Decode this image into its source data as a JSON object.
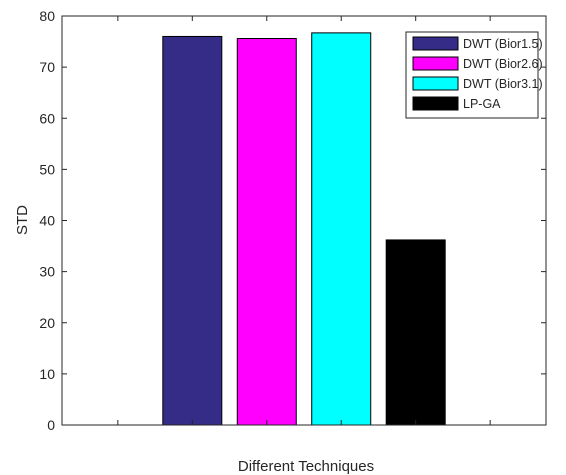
{
  "chart_data": {
    "type": "bar",
    "title": "",
    "xlabel": "Different Techniques",
    "ylabel": "STD",
    "ylim": [
      0,
      80
    ],
    "yticks": [
      0,
      10,
      20,
      30,
      40,
      50,
      60,
      70,
      80
    ],
    "x_positions": [
      1,
      2,
      3,
      4,
      5,
      6
    ],
    "xlim": [
      0.25,
      6.75
    ],
    "grid": false,
    "legend_position": "top-right",
    "series": [
      {
        "name": "DWT (Bior1.5)",
        "x": 2,
        "value": 76.0,
        "color": "#342c87"
      },
      {
        "name": "DWT (Bior2.6)",
        "x": 3,
        "value": 75.6,
        "color": "#ff00ff"
      },
      {
        "name": "DWT (Bior3.1)",
        "x": 4,
        "value": 76.7,
        "color": "#00ffff"
      },
      {
        "name": "LP-GA",
        "x": 5,
        "value": 36.2,
        "color": "#000000"
      }
    ],
    "zero_bars_x": [
      1,
      6
    ]
  }
}
